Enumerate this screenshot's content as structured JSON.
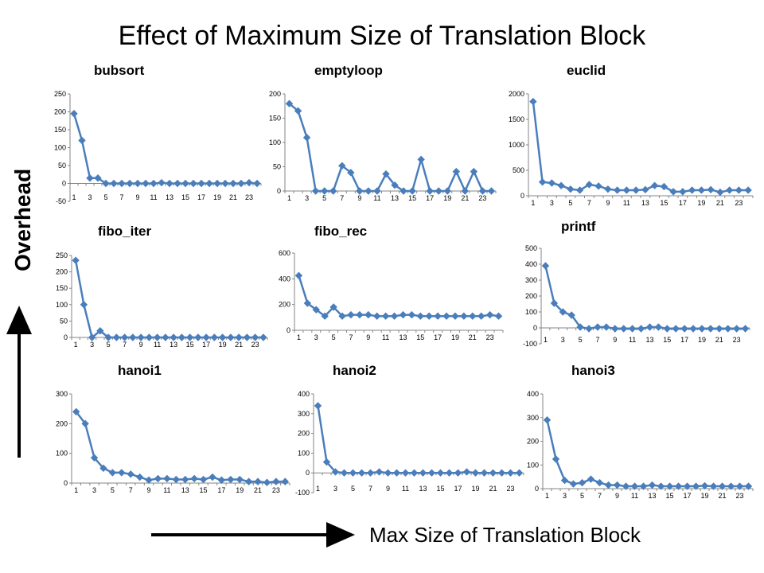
{
  "title": "Effect of Maximum Size of Translation Block",
  "y_axis_label": "Overhead",
  "x_axis_label": "Max  Size  of Translation Block",
  "series_color": "#4a7ebb",
  "chart_data": [
    {
      "type": "line",
      "title": "bubsort",
      "x": [
        1,
        2,
        3,
        4,
        5,
        6,
        7,
        8,
        9,
        10,
        11,
        12,
        13,
        14,
        15,
        16,
        17,
        18,
        19,
        20,
        21,
        22,
        23,
        24
      ],
      "values": [
        195,
        120,
        15,
        15,
        0,
        0,
        0,
        0,
        0,
        0,
        0,
        2,
        0,
        0,
        0,
        0,
        0,
        0,
        0,
        0,
        0,
        0,
        2,
        0
      ],
      "ylim": [
        -50,
        250
      ],
      "yticks": [
        "-50",
        "0",
        "50",
        "100",
        "150",
        "200",
        "250"
      ],
      "xtick_labels": [
        "1",
        "3",
        "5",
        "7",
        "9",
        "11",
        "13",
        "15",
        "17",
        "19",
        "21",
        "23"
      ]
    },
    {
      "type": "line",
      "title": "emptyloop",
      "x": [
        1,
        2,
        3,
        4,
        5,
        6,
        7,
        8,
        9,
        10,
        11,
        12,
        13,
        14,
        15,
        16,
        17,
        18,
        19,
        20,
        21,
        22,
        23,
        24
      ],
      "values": [
        180,
        165,
        110,
        0,
        0,
        0,
        52,
        38,
        0,
        0,
        0,
        35,
        12,
        0,
        0,
        65,
        0,
        0,
        0,
        40,
        0,
        40,
        0,
        0
      ],
      "ylim": [
        0,
        200
      ],
      "yticks": [
        "0",
        "50",
        "100",
        "150",
        "200"
      ],
      "xtick_labels": [
        "1",
        "3",
        "5",
        "7",
        "9",
        "11",
        "13",
        "15",
        "17",
        "19",
        "21",
        "23"
      ]
    },
    {
      "type": "line",
      "title": "euclid",
      "x": [
        1,
        2,
        3,
        4,
        5,
        6,
        7,
        8,
        9,
        10,
        11,
        12,
        13,
        14,
        15,
        16,
        17,
        18,
        19,
        20,
        21,
        22,
        23,
        24
      ],
      "values": [
        1850,
        270,
        250,
        200,
        130,
        110,
        220,
        190,
        130,
        110,
        110,
        110,
        120,
        200,
        180,
        80,
        80,
        110,
        110,
        120,
        70,
        110,
        110,
        110
      ],
      "ylim": [
        0,
        2000
      ],
      "yticks": [
        "0",
        "500",
        "1000",
        "1500",
        "2000"
      ],
      "xtick_labels": [
        "1",
        "3",
        "5",
        "7",
        "9",
        "11",
        "13",
        "15",
        "17",
        "19",
        "21",
        "23"
      ]
    },
    {
      "type": "line",
      "title": "fibo_iter",
      "x": [
        1,
        2,
        3,
        4,
        5,
        6,
        7,
        8,
        9,
        10,
        11,
        12,
        13,
        14,
        15,
        16,
        17,
        18,
        19,
        20,
        21,
        22,
        23,
        24
      ],
      "values": [
        235,
        100,
        0,
        20,
        0,
        0,
        0,
        0,
        0,
        0,
        0,
        0,
        0,
        0,
        0,
        0,
        0,
        0,
        0,
        0,
        0,
        0,
        0,
        0
      ],
      "ylim": [
        0,
        250
      ],
      "yticks": [
        "0",
        "50",
        "100",
        "150",
        "200",
        "250"
      ],
      "xtick_labels": [
        "1",
        "3",
        "5",
        "7",
        "9",
        "11",
        "13",
        "15",
        "17",
        "19",
        "21",
        "23"
      ]
    },
    {
      "type": "line",
      "title": "fibo_rec",
      "x": [
        1,
        2,
        3,
        4,
        5,
        6,
        7,
        8,
        9,
        10,
        11,
        12,
        13,
        14,
        15,
        16,
        17,
        18,
        19,
        20,
        21,
        22,
        23,
        24
      ],
      "values": [
        425,
        210,
        160,
        110,
        180,
        110,
        120,
        120,
        120,
        110,
        110,
        110,
        120,
        120,
        110,
        110,
        110,
        110,
        110,
        110,
        110,
        110,
        120,
        110
      ],
      "ylim": [
        0,
        600
      ],
      "yticks": [
        "0",
        "200",
        "400",
        "600"
      ],
      "xtick_labels": [
        "1",
        "3",
        "5",
        "7",
        "9",
        "11",
        "13",
        "15",
        "17",
        "19",
        "21",
        "23"
      ]
    },
    {
      "type": "line",
      "title": "printf",
      "x": [
        1,
        2,
        3,
        4,
        5,
        6,
        7,
        8,
        9,
        10,
        11,
        12,
        13,
        14,
        15,
        16,
        17,
        18,
        19,
        20,
        21,
        22,
        23,
        24
      ],
      "values": [
        390,
        155,
        100,
        80,
        5,
        -5,
        5,
        5,
        -5,
        -5,
        -5,
        -5,
        5,
        5,
        -5,
        -5,
        -5,
        -5,
        -5,
        -5,
        -5,
        -5,
        -5,
        -5
      ],
      "ylim": [
        -100,
        500
      ],
      "yticks": [
        "-100",
        "0",
        "100",
        "200",
        "300",
        "400",
        "500"
      ],
      "xtick_labels": [
        "1",
        "3",
        "5",
        "7",
        "9",
        "11",
        "13",
        "15",
        "17",
        "19",
        "21",
        "23"
      ]
    },
    {
      "type": "line",
      "title": "hanoi1",
      "x": [
        1,
        2,
        3,
        4,
        5,
        6,
        7,
        8,
        9,
        10,
        11,
        12,
        13,
        14,
        15,
        16,
        17,
        18,
        19,
        20,
        21,
        22,
        23,
        24
      ],
      "values": [
        240,
        200,
        85,
        50,
        35,
        35,
        30,
        20,
        10,
        15,
        15,
        12,
        12,
        15,
        12,
        20,
        10,
        12,
        12,
        5,
        5,
        2,
        5,
        5
      ],
      "ylim": [
        0,
        300
      ],
      "yticks": [
        "0",
        "100",
        "200",
        "300"
      ],
      "xtick_labels": [
        "1",
        "3",
        "5",
        "7",
        "9",
        "11",
        "13",
        "15",
        "17",
        "19",
        "21",
        "23"
      ]
    },
    {
      "type": "line",
      "title": "hanoi2",
      "x": [
        1,
        2,
        3,
        4,
        5,
        6,
        7,
        8,
        9,
        10,
        11,
        12,
        13,
        14,
        15,
        16,
        17,
        18,
        19,
        20,
        21,
        22,
        23,
        24
      ],
      "values": [
        340,
        55,
        5,
        0,
        0,
        0,
        0,
        5,
        0,
        0,
        0,
        0,
        0,
        0,
        0,
        0,
        0,
        5,
        0,
        0,
        0,
        0,
        0,
        0
      ],
      "ylim": [
        -100,
        400
      ],
      "yticks": [
        "-100",
        "0",
        "100",
        "200",
        "300",
        "400"
      ],
      "xtick_labels": [
        "1",
        "3",
        "5",
        "7",
        "9",
        "11",
        "13",
        "15",
        "17",
        "19",
        "21",
        "23"
      ]
    },
    {
      "type": "line",
      "title": "hanoi3",
      "x": [
        1,
        2,
        3,
        4,
        5,
        6,
        7,
        8,
        9,
        10,
        11,
        12,
        13,
        14,
        15,
        16,
        17,
        18,
        19,
        20,
        21,
        22,
        23,
        24
      ],
      "values": [
        290,
        125,
        35,
        20,
        25,
        40,
        25,
        15,
        15,
        10,
        10,
        10,
        15,
        10,
        10,
        10,
        10,
        10,
        12,
        10,
        10,
        10,
        10,
        10
      ],
      "ylim": [
        0,
        400
      ],
      "yticks": [
        "0",
        "100",
        "200",
        "300",
        "400"
      ],
      "xtick_labels": [
        "1",
        "3",
        "5",
        "7",
        "9",
        "11",
        "13",
        "15",
        "17",
        "19",
        "21",
        "23"
      ]
    }
  ]
}
